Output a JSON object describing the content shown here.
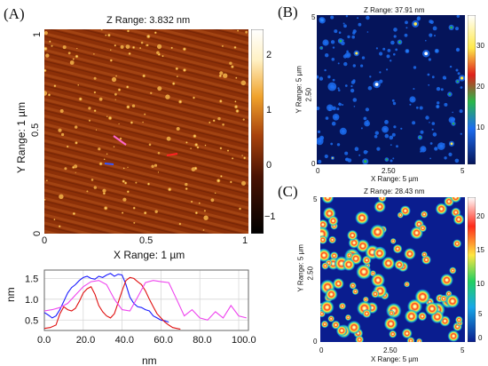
{
  "panels": {
    "A": {
      "letter": "(A)",
      "title": "Z Range:  3.832 nm",
      "x_ticks": [
        "0",
        "0.5",
        "1"
      ],
      "y_ticks": [
        "1",
        "0.5",
        "0"
      ],
      "xlabel": "X Range: 1 µm",
      "ylabel": "Y Range: 1 µm",
      "colorbar_ticks": [
        "2",
        "1",
        "0",
        "−1"
      ]
    },
    "B": {
      "letter": "(B)",
      "title": "Z Range:  37.91 nm",
      "x_ticks": [
        "0",
        "2.50",
        "5"
      ],
      "y_ticks": [
        "5",
        "2.50",
        "0"
      ],
      "xlabel": "X Range: 5 µm",
      "ylabel": "Y Range: 5 µm",
      "colorbar_ticks": [
        "30",
        "20",
        "10"
      ]
    },
    "C": {
      "letter": "(C)",
      "title": "Z Range:  28.43 nm",
      "x_ticks": [
        "0",
        "2.50",
        "5"
      ],
      "y_ticks": [
        "5",
        "2.50",
        "0"
      ],
      "xlabel": "X Range: 5 µm",
      "ylabel": "Y Range: 5 µm",
      "colorbar_ticks": [
        "20",
        "15",
        "10",
        "5",
        "0"
      ]
    }
  },
  "chart_data": {
    "type": "line",
    "xlabel": "nm",
    "ylabel": "nm",
    "xlim": [
      0,
      105
    ],
    "ylim": [
      0.25,
      1.7
    ],
    "x_ticks": [
      "0.0",
      "20.0",
      "40.0",
      "60.0",
      "80.0",
      "100.0"
    ],
    "y_ticks": [
      "1.5",
      "1.0",
      "0.5"
    ],
    "grid": true,
    "series": [
      {
        "color": "#1a1aff",
        "x": [
          0,
          2,
          4,
          6,
          8,
          10,
          12,
          14,
          16,
          18,
          20,
          22,
          24,
          26,
          28,
          30,
          32,
          34,
          36,
          38,
          40,
          42,
          44,
          46,
          48,
          50,
          52,
          54,
          56,
          58,
          60,
          62,
          64
        ],
        "y": [
          0.68,
          0.62,
          0.55,
          0.6,
          0.75,
          0.95,
          1.15,
          1.28,
          1.35,
          1.45,
          1.52,
          1.55,
          1.5,
          1.48,
          1.55,
          1.52,
          1.58,
          1.62,
          1.55,
          1.6,
          1.58,
          1.35,
          1.05,
          0.9,
          0.82,
          0.8,
          0.75,
          0.72,
          0.6,
          0.55,
          0.5,
          0.48,
          0.45
        ]
      },
      {
        "color": "#e01010",
        "x": [
          0,
          3,
          6,
          8,
          10,
          12,
          14,
          16,
          18,
          20,
          22,
          24,
          26,
          28,
          30,
          32,
          34,
          36,
          38,
          40,
          42,
          44,
          46,
          48,
          50,
          52,
          54,
          56,
          58,
          60,
          62,
          64,
          66,
          68,
          70
        ],
        "y": [
          0.3,
          0.32,
          0.38,
          0.65,
          0.82,
          0.75,
          0.72,
          0.78,
          0.95,
          1.15,
          1.25,
          1.3,
          1.12,
          0.85,
          0.7,
          0.6,
          0.55,
          0.65,
          0.92,
          1.2,
          1.45,
          1.52,
          1.5,
          1.42,
          1.35,
          1.2,
          1.0,
          0.82,
          0.65,
          0.55,
          0.45,
          0.38,
          0.32,
          0.3,
          0.28
        ]
      },
      {
        "color": "#ee44ee",
        "x": [
          0,
          4,
          8,
          12,
          16,
          20,
          24,
          28,
          32,
          36,
          40,
          44,
          48,
          52,
          56,
          60,
          64,
          68,
          72,
          76,
          80,
          84,
          88,
          92,
          96,
          100,
          104
        ],
        "y": [
          0.72,
          0.75,
          0.8,
          0.9,
          1.1,
          1.3,
          1.42,
          1.45,
          1.35,
          1.0,
          0.75,
          0.72,
          1.05,
          1.4,
          1.45,
          1.42,
          1.4,
          1.0,
          0.6,
          0.75,
          0.55,
          0.5,
          0.7,
          0.55,
          0.85,
          0.6,
          0.55
        ]
      }
    ]
  },
  "colors": {
    "afm_bg": "#8a2e06",
    "blue_bg": "#05145a",
    "c_bg": "#0a1d8f"
  }
}
